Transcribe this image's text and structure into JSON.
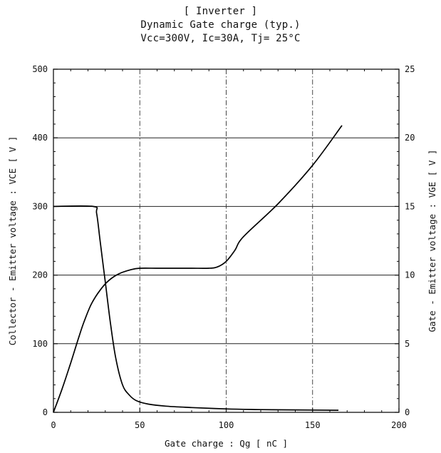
{
  "chart_data": {
    "type": "line",
    "title": [
      "[ Inverter ]",
      "Dynamic Gate charge  (typ.)",
      "Vcc=300V, Ic=30A, Tj= 25°C"
    ],
    "xlabel": "Gate charge  :  Qg  [ nC ]",
    "ylabel_left": "Collector - Emitter voltage  :  VCE  [ V ]",
    "ylabel_right": "Gate - Emitter voltage  :  VGE  [ V ]",
    "xlim": [
      0,
      200
    ],
    "ylim_left": [
      0,
      500
    ],
    "ylim_right": [
      0,
      25
    ],
    "x_ticks": [
      0,
      50,
      100,
      150,
      200
    ],
    "y_ticks_left": [
      0,
      100,
      200,
      300,
      400,
      500
    ],
    "y_ticks_right": [
      0,
      5,
      10,
      15,
      20,
      25
    ],
    "grid": true,
    "series": [
      {
        "axis": "left",
        "x": [
          0,
          23,
          25,
          27,
          30,
          33,
          36,
          40,
          44,
          48,
          55,
          65,
          80,
          100,
          120,
          140,
          165
        ],
        "y": [
          300,
          300,
          290,
          250,
          190,
          130,
          80,
          40,
          25,
          17,
          12,
          9,
          7,
          5,
          4,
          3.5,
          3
        ]
      },
      {
        "axis": "right",
        "x": [
          0,
          5,
          10,
          15,
          18,
          22,
          27,
          32,
          38,
          45,
          50,
          60,
          70,
          80,
          90,
          95,
          100,
          105,
          110,
          130,
          150,
          167
        ],
        "y": [
          0,
          1.7,
          3.6,
          5.6,
          6.7,
          7.9,
          8.9,
          9.6,
          10.1,
          10.4,
          10.5,
          10.5,
          10.5,
          10.5,
          10.5,
          10.6,
          11.0,
          11.8,
          12.8,
          15.2,
          18.0,
          20.9
        ]
      }
    ]
  }
}
